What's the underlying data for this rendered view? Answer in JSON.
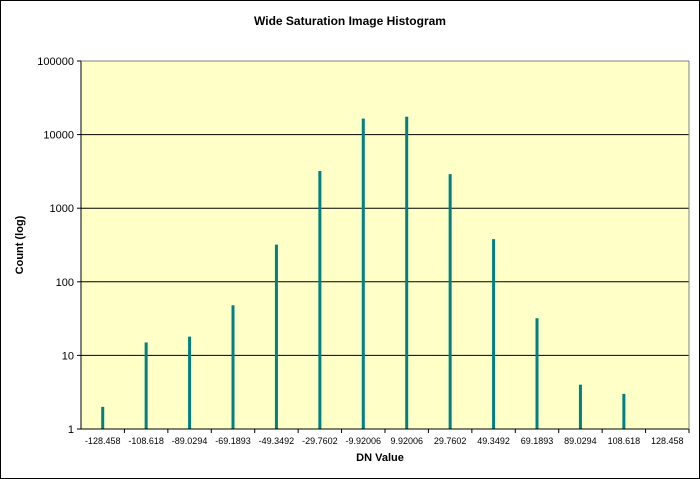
{
  "chart_data": {
    "type": "bar",
    "title": "Wide Saturation Image Histogram",
    "xlabel": "DN Value",
    "ylabel": "Count (log)",
    "y_scale": "log",
    "ylim": [
      1,
      100000
    ],
    "grid": "horizontal",
    "legend": "none",
    "plot_background": "#FFFFC8",
    "bar_color": "#008080",
    "categories": [
      "-128.458",
      "-108.618",
      "-89.0294",
      "-69.1893",
      "-49.3492",
      "-29.7602",
      "-9.92006",
      "9.92006",
      "29.7602",
      "49.3492",
      "69.1893",
      "89.0294",
      "108.618",
      "128.458"
    ],
    "values": [
      2,
      15,
      18,
      48,
      320,
      3200,
      16500,
      17500,
      2900,
      380,
      32,
      4,
      3,
      0
    ],
    "y_ticks": [
      "1",
      "10",
      "100",
      "1000",
      "10000",
      "100000"
    ]
  }
}
